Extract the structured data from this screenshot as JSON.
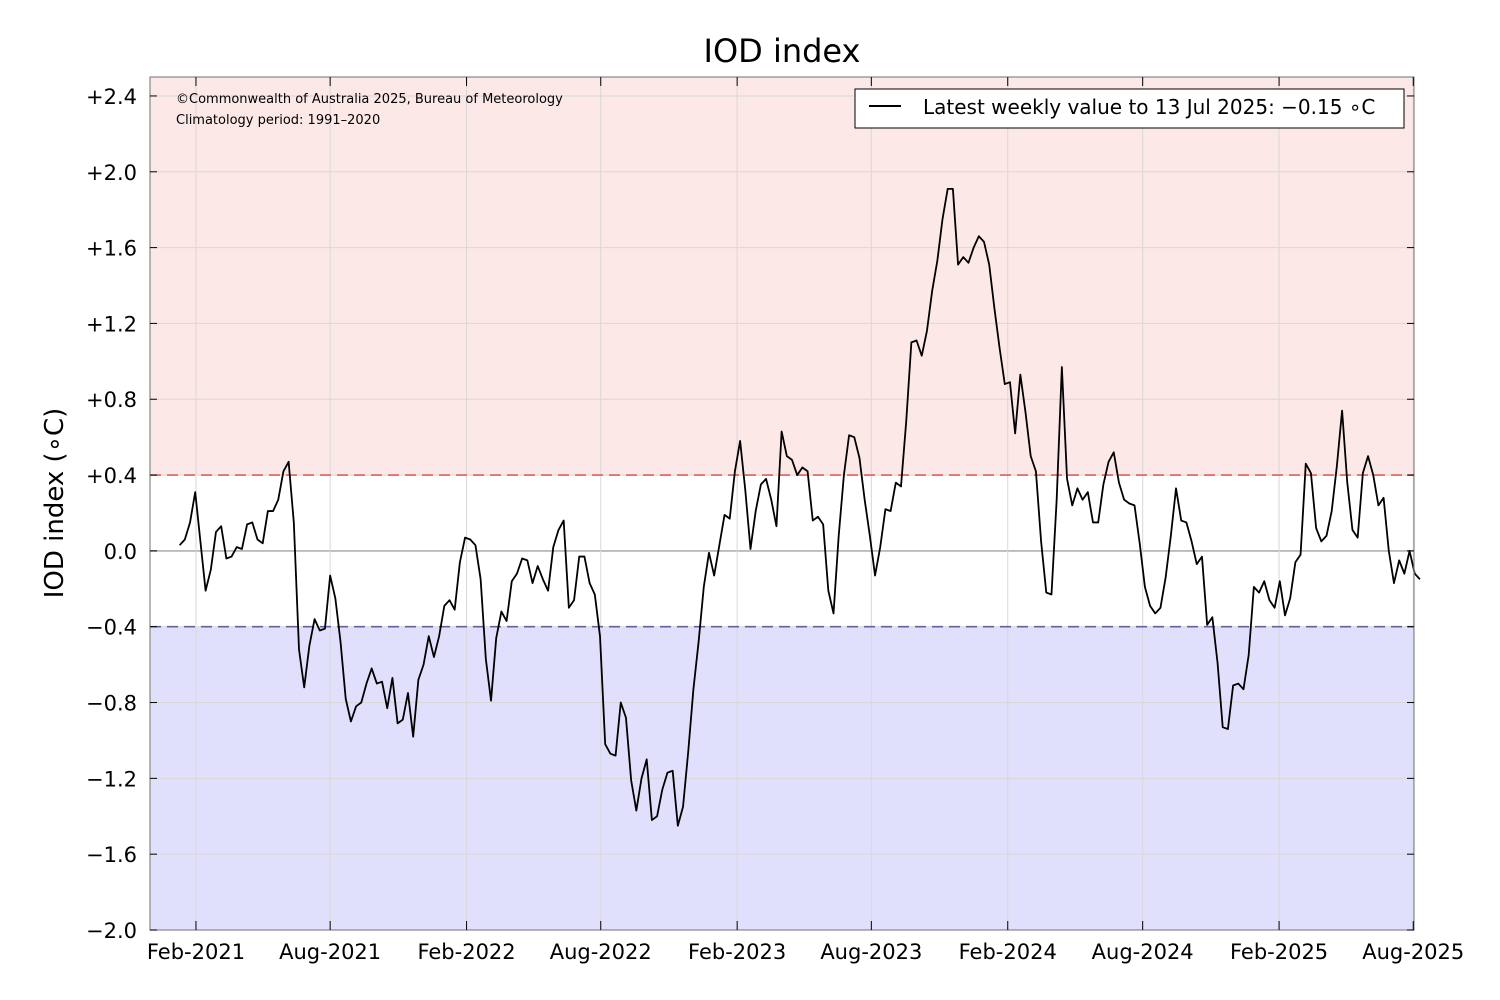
{
  "chart_data": {
    "type": "line",
    "title": "IOD index",
    "xlabel": "",
    "ylabel": "IOD index (∘C)",
    "xlim": [
      "2020-12-01",
      "2025-08-02"
    ],
    "ylim": [
      -2.0,
      2.5
    ],
    "grid": true,
    "legend_position": "top-right",
    "yticks": [
      2.4,
      2.0,
      1.6,
      1.2,
      0.8,
      0.4,
      0.0,
      -0.4,
      -0.8,
      -1.2,
      -1.6,
      -2.0
    ],
    "ytick_labels": [
      "+2.4",
      "+2.0",
      "+1.6",
      "+1.2",
      "+0.8",
      "+0.4",
      "0.0",
      "−0.4",
      "−0.8",
      "−1.2",
      "−1.6",
      "−2.0"
    ],
    "xticks": [
      "2021-02-01",
      "2021-08-01",
      "2022-02-01",
      "2022-08-01",
      "2023-02-01",
      "2023-08-01",
      "2024-02-01",
      "2024-08-01",
      "2025-02-01",
      "2025-08-01"
    ],
    "xtick_labels": [
      "Feb-2021",
      "Aug-2021",
      "Feb-2022",
      "Aug-2022",
      "Feb-2023",
      "Aug-2023",
      "Feb-2024",
      "Aug-2024",
      "Feb-2025",
      "Aug-2025"
    ],
    "thresholds": [
      {
        "value": 0.4,
        "color": "#e06060"
      },
      {
        "value": -0.4,
        "color": "#6060a8"
      }
    ],
    "zones": [
      {
        "from": 0.4,
        "to": 2.5,
        "color": "#fde8e8"
      },
      {
        "from": -2.0,
        "to": -0.4,
        "color": "#e0e0fc"
      }
    ],
    "annotations": [
      "©Commonwealth of Australia 2025, Bureau of Meteorology",
      "Climatology period: 1991–2020"
    ],
    "series": [
      {
        "name": "Latest weekly value to 13 Jul 2025: −0.15 ∘C",
        "color": "#000000",
        "start": "2021-01-10",
        "step_days": 7,
        "values": [
          0.03,
          0.06,
          0.15,
          0.31,
          0.05,
          -0.21,
          -0.1,
          0.1,
          0.13,
          -0.04,
          -0.03,
          0.02,
          0.01,
          0.14,
          0.15,
          0.06,
          0.04,
          0.21,
          0.21,
          0.27,
          0.42,
          0.47,
          0.15,
          -0.52,
          -0.72,
          -0.5,
          -0.36,
          -0.42,
          -0.41,
          -0.13,
          -0.25,
          -0.48,
          -0.78,
          -0.9,
          -0.82,
          -0.8,
          -0.7,
          -0.62,
          -0.7,
          -0.69,
          -0.83,
          -0.67,
          -0.91,
          -0.89,
          -0.75,
          -0.98,
          -0.68,
          -0.6,
          -0.45,
          -0.56,
          -0.45,
          -0.29,
          -0.26,
          -0.31,
          -0.06,
          0.07,
          0.06,
          0.03,
          -0.15,
          -0.57,
          -0.79,
          -0.46,
          -0.32,
          -0.37,
          -0.16,
          -0.12,
          -0.04,
          -0.05,
          -0.17,
          -0.08,
          -0.15,
          -0.21,
          0.02,
          0.11,
          0.16,
          -0.3,
          -0.26,
          -0.03,
          -0.03,
          -0.17,
          -0.23,
          -0.45,
          -1.02,
          -1.07,
          -1.08,
          -0.8,
          -0.88,
          -1.21,
          -1.37,
          -1.2,
          -1.1,
          -1.42,
          -1.4,
          -1.26,
          -1.17,
          -1.16,
          -1.45,
          -1.35,
          -1.06,
          -0.73,
          -0.48,
          -0.19,
          -0.01,
          -0.13,
          0.03,
          0.19,
          0.17,
          0.42,
          0.58,
          0.32,
          0.01,
          0.21,
          0.35,
          0.38,
          0.27,
          0.13,
          0.63,
          0.5,
          0.48,
          0.4,
          0.44,
          0.42,
          0.16,
          0.18,
          0.14,
          -0.21,
          -0.33,
          0.08,
          0.4,
          0.61,
          0.6,
          0.49,
          0.27,
          0.08,
          -0.13,
          0.02,
          0.22,
          0.21,
          0.36,
          0.34,
          0.68,
          1.1,
          1.11,
          1.03,
          1.16,
          1.37,
          1.53,
          1.75,
          1.91,
          1.91,
          1.51,
          1.55,
          1.52,
          1.6,
          1.66,
          1.63,
          1.51,
          1.28,
          1.07,
          0.88,
          0.89,
          0.62,
          0.93,
          0.73,
          0.5,
          0.42,
          0.05,
          -0.22,
          -0.23,
          0.27,
          0.97,
          0.38,
          0.24,
          0.33,
          0.27,
          0.31,
          0.15,
          0.15,
          0.35,
          0.47,
          0.52,
          0.36,
          0.27,
          0.25,
          0.24,
          0.04,
          -0.19,
          -0.29,
          -0.33,
          -0.3,
          -0.14,
          0.08,
          0.33,
          0.16,
          0.15,
          0.05,
          -0.07,
          -0.03,
          -0.39,
          -0.35,
          -0.59,
          -0.93,
          -0.94,
          -0.71,
          -0.7,
          -0.73,
          -0.55,
          -0.19,
          -0.22,
          -0.16,
          -0.26,
          -0.3,
          -0.16,
          -0.34,
          -0.25,
          -0.06,
          -0.02,
          0.46,
          0.41,
          0.12,
          0.05,
          0.08,
          0.21,
          0.45,
          0.74,
          0.36,
          0.11,
          0.07,
          0.41,
          0.5,
          0.4,
          0.24,
          0.28,
          0.0,
          -0.17,
          -0.05,
          -0.12,
          0.0,
          -0.12,
          -0.15
        ]
      }
    ]
  }
}
